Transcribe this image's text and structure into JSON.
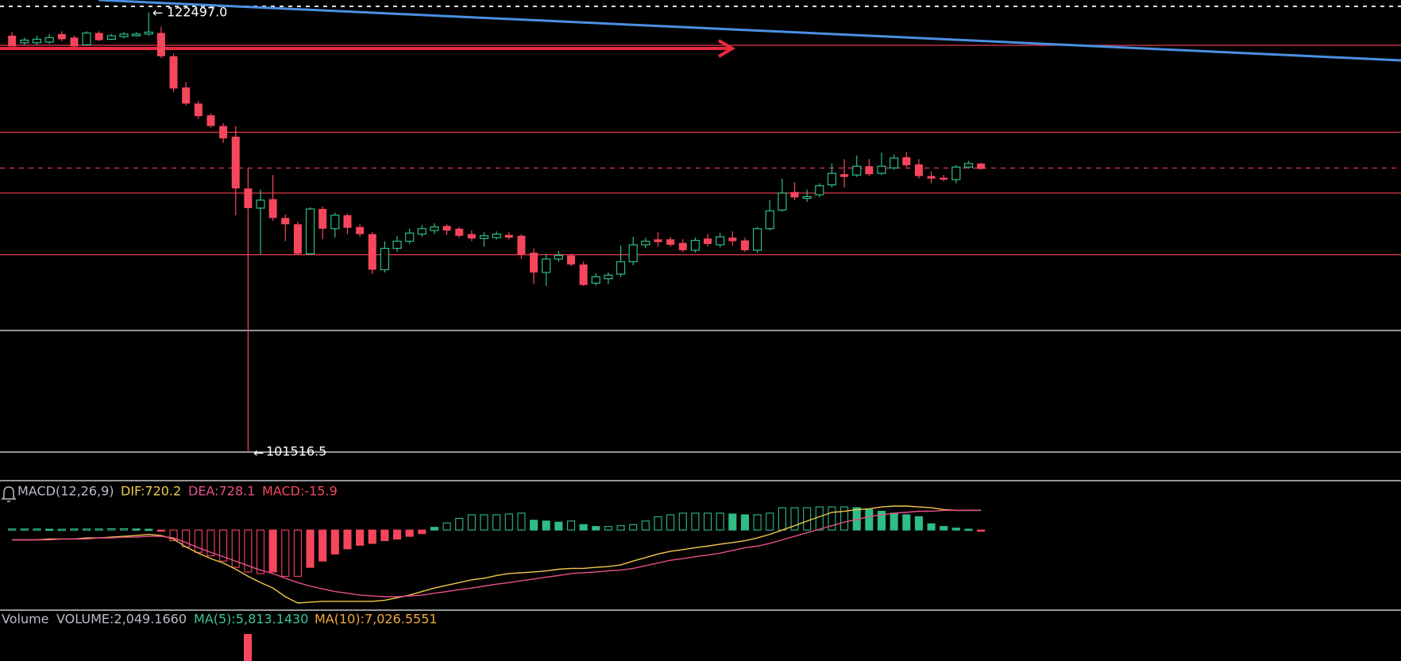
{
  "chart_data": [
    {
      "type": "candlestick",
      "up_color": "#2ebd85",
      "down_color": "#f6465d",
      "high_label": "122497.0",
      "low_label": "101516.5",
      "open": [
        121390,
        121050,
        121050,
        121090,
        121470,
        121300,
        120960,
        121520,
        121220,
        121350,
        121390,
        121470,
        121520,
        120410,
        118920,
        118150,
        117590,
        117080,
        116570,
        114100,
        113160,
        113590,
        112690,
        112390,
        110980,
        113120,
        112180,
        112820,
        112260,
        111920,
        110220,
        111240,
        111580,
        111920,
        112090,
        112310,
        112180,
        111920,
        111710,
        111750,
        111880,
        111840,
        111030,
        110090,
        110730,
        110900,
        110470,
        109580,
        109790,
        110010,
        110600,
        111410,
        111670,
        111670,
        111500,
        111150,
        111710,
        111410,
        111750,
        111620,
        111150,
        112180,
        113070,
        113930,
        113630,
        113800,
        114270,
        114780,
        114740,
        115160,
        114820,
        115080,
        115590,
        115250,
        114690,
        114610,
        114520,
        115120,
        115290
      ],
      "high": [
        121560,
        121300,
        121390,
        121470,
        121600,
        121390,
        121600,
        121600,
        121470,
        121560,
        121560,
        122497,
        121820,
        120540,
        119170,
        118280,
        117680,
        117210,
        117080,
        115080,
        114050,
        114740,
        112860,
        112520,
        113200,
        113240,
        112950,
        112900,
        112390,
        112010,
        111580,
        111840,
        112180,
        112350,
        112430,
        112390,
        112260,
        112090,
        112010,
        112050,
        112010,
        111920,
        111240,
        110980,
        111110,
        110980,
        110600,
        110050,
        110090,
        111370,
        111790,
        111750,
        112010,
        111790,
        111670,
        111750,
        111920,
        111970,
        112050,
        111750,
        112260,
        113540,
        114570,
        114400,
        114050,
        114350,
        115290,
        115500,
        115670,
        115500,
        115800,
        115720,
        115840,
        115500,
        114910,
        114740,
        115210,
        115420,
        115330
      ],
      "low": [
        120880,
        120960,
        120960,
        121000,
        121130,
        120830,
        120920,
        121130,
        121180,
        121260,
        121350,
        121390,
        120320,
        118700,
        118060,
        117420,
        117000,
        116270,
        112820,
        101516.5,
        110940,
        112560,
        111580,
        110940,
        110940,
        111670,
        111750,
        111920,
        111790,
        110010,
        110090,
        111070,
        111450,
        111790,
        111920,
        111880,
        111750,
        111580,
        111320,
        111670,
        111670,
        110730,
        109530,
        109450,
        110600,
        110390,
        109450,
        109450,
        109530,
        109880,
        110430,
        111240,
        111320,
        111320,
        111070,
        111030,
        111320,
        111280,
        111370,
        111070,
        111030,
        112090,
        112990,
        113540,
        113460,
        113670,
        114140,
        114140,
        114650,
        114690,
        114740,
        114990,
        115120,
        114570,
        114350,
        114440,
        114350,
        115030,
        114990
      ],
      "close": [
        120880,
        121180,
        121220,
        121300,
        121220,
        120880,
        121520,
        121180,
        121390,
        121470,
        121470,
        121560,
        120410,
        118870,
        118150,
        117550,
        117080,
        116490,
        114100,
        113160,
        113540,
        112690,
        112390,
        110980,
        113120,
        112180,
        112820,
        112220,
        111920,
        110220,
        111240,
        111580,
        111970,
        112180,
        112260,
        112090,
        111840,
        111710,
        111840,
        111920,
        111750,
        110940,
        110090,
        110730,
        110900,
        110470,
        109490,
        109880,
        109960,
        110600,
        111410,
        111580,
        111540,
        111410,
        111150,
        111620,
        111450,
        111790,
        111580,
        111150,
        112180,
        113030,
        113880,
        113670,
        113710,
        114230,
        114820,
        114650,
        115160,
        114780,
        115160,
        115550,
        115210,
        114690,
        114570,
        114520,
        115120,
        115290,
        115030
      ]
    },
    {
      "type": "macd",
      "title": "MACD(12,26,9)",
      "series": [
        {
          "name": "DIF:720.2",
          "color": "#f0c94a",
          "values": [
            -360,
            -360,
            -360,
            -330,
            -330,
            -330,
            -290,
            -290,
            -260,
            -230,
            -200,
            -160,
            -200,
            -330,
            -620,
            -850,
            -1050,
            -1210,
            -1440,
            -1700,
            -1930,
            -2130,
            -2450,
            -2680,
            -2650,
            -2620,
            -2620,
            -2620,
            -2620,
            -2620,
            -2580,
            -2490,
            -2390,
            -2260,
            -2130,
            -2030,
            -1930,
            -1830,
            -1770,
            -1670,
            -1600,
            -1570,
            -1540,
            -1500,
            -1440,
            -1410,
            -1410,
            -1370,
            -1340,
            -1280,
            -1140,
            -1010,
            -880,
            -780,
            -720,
            -650,
            -590,
            -520,
            -460,
            -390,
            -290,
            -160,
            0,
            160,
            330,
            490,
            650,
            690,
            750,
            780,
            850,
            880,
            880,
            850,
            820,
            750,
            720,
            720,
            720.2
          ]
        },
        {
          "name": "DEA:728.1",
          "color": "#e74f8b",
          "values": [
            -360,
            -360,
            -360,
            -360,
            -330,
            -330,
            -330,
            -290,
            -290,
            -260,
            -260,
            -230,
            -230,
            -290,
            -460,
            -650,
            -820,
            -980,
            -1140,
            -1310,
            -1470,
            -1600,
            -1770,
            -1930,
            -2060,
            -2160,
            -2260,
            -2320,
            -2390,
            -2420,
            -2450,
            -2450,
            -2420,
            -2390,
            -2320,
            -2260,
            -2190,
            -2130,
            -2060,
            -1990,
            -1930,
            -1860,
            -1800,
            -1730,
            -1670,
            -1600,
            -1570,
            -1540,
            -1500,
            -1470,
            -1410,
            -1310,
            -1210,
            -1110,
            -1050,
            -980,
            -920,
            -850,
            -750,
            -650,
            -590,
            -490,
            -360,
            -230,
            -100,
            30,
            160,
            290,
            390,
            490,
            560,
            620,
            650,
            690,
            690,
            720,
            720,
            720,
            728.1
          ]
        },
        {
          "name": "MACD:-15.9",
          "color": "#f6465d",
          "up_color": "#2ebd85",
          "down_color": "#f6465d",
          "values": [
            40,
            40,
            40,
            30,
            30,
            40,
            40,
            40,
            50,
            50,
            40,
            30,
            -20,
            -390,
            -620,
            -820,
            -950,
            -1140,
            -1370,
            -1540,
            -1600,
            -1540,
            -1700,
            -1700,
            -1370,
            -1140,
            -880,
            -690,
            -560,
            -490,
            -390,
            -330,
            -230,
            -130,
            100,
            260,
            430,
            560,
            560,
            560,
            590,
            620,
            360,
            330,
            290,
            330,
            200,
            130,
            130,
            160,
            200,
            330,
            490,
            560,
            620,
            620,
            620,
            620,
            590,
            560,
            560,
            620,
            820,
            820,
            820,
            850,
            850,
            850,
            820,
            750,
            690,
            620,
            560,
            490,
            230,
            130,
            70,
            30,
            -15.9
          ]
        }
      ]
    }
  ],
  "volume_panel": {
    "title": "Volume",
    "volume": "VOLUME:2,049.1660",
    "ma5": "MA(5):5,813.1430",
    "ma10": "MA(10):7,026.5551"
  }
}
